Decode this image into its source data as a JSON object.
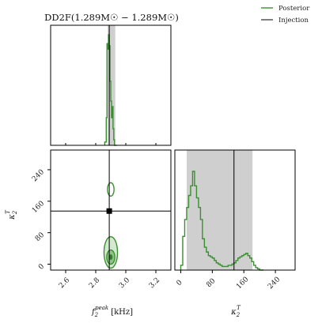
{
  "colors": {
    "posterior": "#3a8f30",
    "injection": "#000000",
    "interval_fill": "#cfcfcf",
    "dark_fill": "#2f7a29",
    "mid_fill": "#8fc487",
    "light_fill": "#d3ead0"
  },
  "chart_data": {
    "type": "corner",
    "title": "DD2F(1.289M☉ − 1.289M☉)",
    "legend": {
      "placement": "top-right",
      "entries": [
        {
          "label": "Posterior",
          "color": "#3a8f30"
        },
        {
          "label": "Injection",
          "color": "#000000"
        }
      ]
    },
    "parameters": [
      {
        "id": "f2peak",
        "xlabel_main": "f",
        "xlabel_sub": "2",
        "xlabel_sup": "peak",
        "xlabel_unit": "[kHz]",
        "range": [
          2.5,
          3.3
        ],
        "ticks": [
          2.6,
          2.8,
          3.0,
          3.2
        ],
        "tick_labels": [
          "2.6",
          "2.8",
          "3.0",
          "3.2"
        ],
        "injection": 2.89,
        "credible_interval": [
          2.88,
          2.93
        ],
        "histogram": {
          "edges": [
            2.86,
            2.87,
            2.875,
            2.88,
            2.885,
            2.89,
            2.895,
            2.9,
            2.905,
            2.91,
            2.915,
            2.92,
            2.925,
            2.93,
            2.94
          ],
          "counts": [
            0.03,
            0.25,
            0.92,
            0.87,
            1.0,
            0.9,
            0.58,
            0.4,
            0.25,
            0.35,
            0.15,
            0.05,
            0.0,
            0.0
          ]
        }
      },
      {
        "id": "kappa2T",
        "xlabel_main": "κ",
        "xlabel_sub": "2",
        "xlabel_sup": "T",
        "ylabel_main": "κ",
        "ylabel_sub": "2",
        "ylabel_sup": "T",
        "range": [
          -15,
          290
        ],
        "ticks": [
          0,
          80,
          160,
          240
        ],
        "tick_labels": [
          "0",
          "80",
          "160",
          "240"
        ],
        "injection": 135,
        "credible_interval": [
          15,
          182
        ],
        "histogram": {
          "edges": [
            0,
            5,
            10,
            15,
            20,
            25,
            30,
            35,
            40,
            45,
            50,
            55,
            60,
            65,
            70,
            75,
            80,
            85,
            90,
            95,
            100,
            105,
            110,
            115,
            120,
            125,
            130,
            135,
            140,
            145,
            150,
            155,
            160,
            165,
            170,
            175,
            180,
            185,
            190,
            195,
            200,
            205,
            210
          ],
          "counts": [
            0.04,
            0.28,
            0.42,
            0.52,
            0.62,
            0.7,
            0.82,
            0.7,
            0.6,
            0.52,
            0.42,
            0.26,
            0.19,
            0.15,
            0.12,
            0.11,
            0.1,
            0.08,
            0.06,
            0.05,
            0.04,
            0.03,
            0.03,
            0.03,
            0.04,
            0.04,
            0.05,
            0.06,
            0.08,
            0.1,
            0.11,
            0.12,
            0.13,
            0.14,
            0.12,
            0.1,
            0.07,
            0.04,
            0.02,
            0.01,
            0.0,
            0.0
          ]
        }
      }
    ],
    "joint": {
      "injection_point": [
        2.89,
        135
      ],
      "contours": [
        {
          "level": "outer",
          "center": [
            2.9,
            30
          ],
          "half_widths": [
            0.045,
            40
          ]
        },
        {
          "level": "middle",
          "center": [
            2.9,
            18
          ],
          "half_widths": [
            0.027,
            18
          ]
        },
        {
          "level": "inner",
          "center": [
            2.9,
            18
          ],
          "half_widths": [
            0.01,
            6
          ]
        },
        {
          "level": "outer-upper",
          "center": [
            2.9,
            190
          ],
          "half_widths": [
            0.022,
            17
          ]
        }
      ]
    }
  }
}
